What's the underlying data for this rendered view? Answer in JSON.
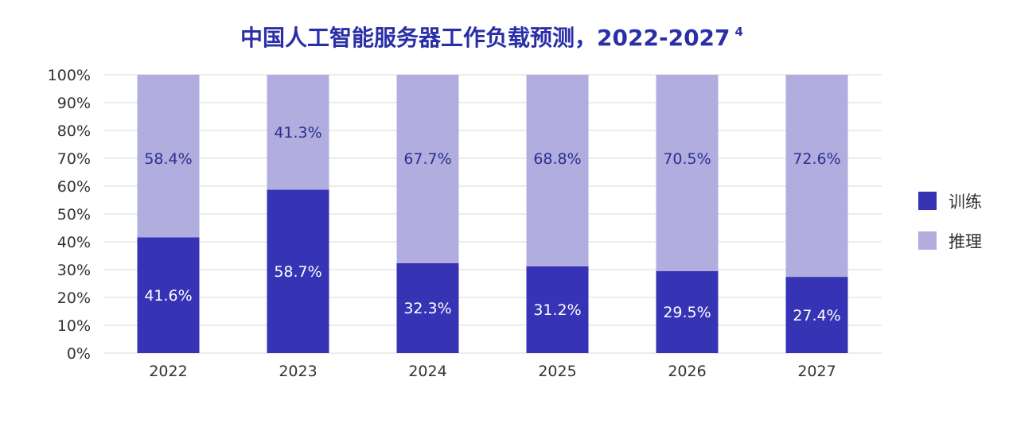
{
  "chart_data": {
    "type": "bar",
    "stacked": true,
    "title": "中国人工智能服务器工作负载预测，2022-2027",
    "title_footnote": "4",
    "categories": [
      "2022",
      "2023",
      "2024",
      "2025",
      "2026",
      "2027"
    ],
    "series": [
      {
        "name": "训练",
        "values": [
          41.6,
          58.7,
          32.3,
          31.2,
          29.5,
          27.4
        ],
        "labels": [
          "41.6%",
          "58.7%",
          "32.3%",
          "31.2%",
          "29.5%",
          "27.4%"
        ],
        "color": "#3633b5",
        "label_color": "#ffffff"
      },
      {
        "name": "推理",
        "values": [
          58.4,
          41.3,
          67.7,
          68.8,
          70.5,
          72.6
        ],
        "labels": [
          "58.4%",
          "41.3%",
          "67.7%",
          "68.8%",
          "70.5%",
          "72.6%"
        ],
        "color": "#b1addf",
        "label_color": "#2b2f8f"
      }
    ],
    "y_ticks": [
      "0%",
      "10%",
      "20%",
      "30%",
      "40%",
      "50%",
      "60%",
      "70%",
      "80%",
      "90%",
      "100%"
    ],
    "ylim": [
      0,
      100
    ],
    "grid": true,
    "legend_position": "right",
    "title_color": "#2a2fa8"
  }
}
